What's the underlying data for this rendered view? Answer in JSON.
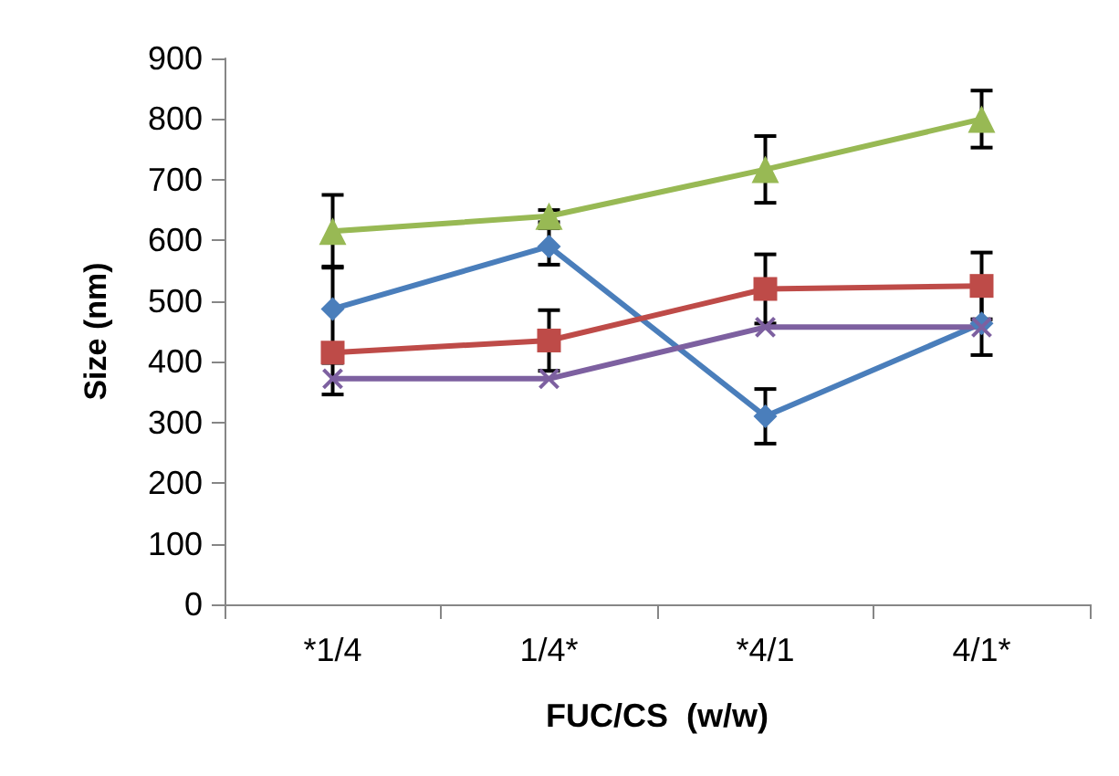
{
  "chart_data": {
    "type": "line",
    "xlabel": "FUC/CS  (w/w)",
    "ylabel": "Size (nm)",
    "categories": [
      "*1/4",
      "1/4*",
      "*4/1",
      "4/1*"
    ],
    "ylim": [
      0,
      900
    ],
    "yticks": [
      0,
      100,
      200,
      300,
      400,
      500,
      600,
      700,
      800,
      900
    ],
    "grid": false,
    "series": [
      {
        "color": "#4a7ebb",
        "marker": "diamond",
        "values": [
          487,
          590,
          310,
          463
        ],
        "errors": [
          70,
          30,
          45,
          52
        ]
      },
      {
        "color": "#be4b48",
        "marker": "square",
        "values": [
          415,
          435,
          520,
          525
        ],
        "errors": [
          null,
          50,
          57,
          55
        ]
      },
      {
        "color": "#98b954",
        "marker": "triangle",
        "values": [
          615,
          640,
          717,
          800
        ],
        "errors": [
          60,
          10,
          55,
          47
        ]
      },
      {
        "color": "#7d60a0",
        "marker": "cross",
        "values": [
          372,
          372,
          457,
          457
        ],
        "errors": [
          26,
          null,
          null,
          null
        ]
      }
    ]
  }
}
